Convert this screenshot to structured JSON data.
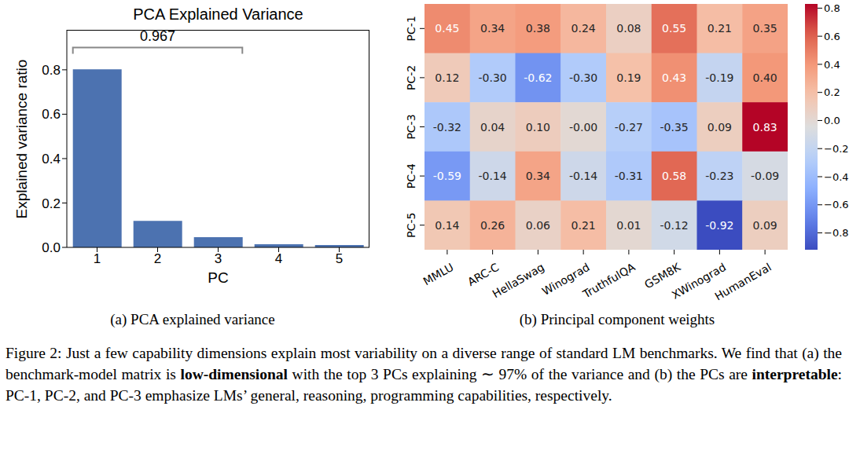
{
  "chart_data": [
    {
      "type": "bar",
      "title": "PCA Explained Variance",
      "caption": "(a) PCA explained variance",
      "x_label": "PC",
      "y_label": "Explained variance ratio",
      "categories": [
        "1",
        "2",
        "3",
        "4",
        "5"
      ],
      "values": [
        0.802,
        0.119,
        0.046,
        0.014,
        0.011
      ],
      "color": "#4c72b0",
      "ylim": [
        0,
        0.98
      ],
      "yticks": [
        {
          "value": 0,
          "label": "0.0"
        },
        0.2,
        0.4,
        0.6,
        0.8
      ],
      "grid": false,
      "annotations": [
        {
          "text": "0.967",
          "x_start": "1",
          "x_end": "3",
          "y": 0.9
        }
      ]
    },
    {
      "type": "heatmap",
      "caption": "(b) Principal component weights",
      "x_categories": [
        "MMLU",
        "ARC-C",
        "HellaSwag",
        "Winograd",
        "TruthfulQA",
        "GSM8K",
        "XWinograd",
        "HumanEval"
      ],
      "y_categories": [
        "PC-1",
        "PC-2",
        "PC-3",
        "PC-4",
        "PC-5"
      ],
      "values": [
        [
          0.45,
          0.34,
          0.38,
          0.24,
          0.08,
          0.55,
          0.21,
          0.35
        ],
        [
          0.12,
          -0.3,
          -0.62,
          -0.3,
          0.19,
          0.43,
          -0.19,
          0.4
        ],
        [
          -0.32,
          0.04,
          0.1,
          0,
          -0.27,
          -0.35,
          0.09,
          0.83
        ],
        [
          -0.59,
          -0.14,
          0.34,
          -0.14,
          -0.31,
          0.58,
          -0.23,
          -0.09
        ],
        [
          0.14,
          0.26,
          0.06,
          0.21,
          0.01,
          -0.12,
          -0.92,
          0.09
        ]
      ],
      "value_labels": [
        [
          "0.45",
          "0.34",
          "0.38",
          "0.24",
          "0.08",
          "0.55",
          "0.21",
          "0.35"
        ],
        [
          "0.12",
          "-0.30",
          "-0.62",
          "-0.30",
          "0.19",
          "0.43",
          "-0.19",
          "0.40"
        ],
        [
          "-0.32",
          "0.04",
          "0.10",
          "-0.00",
          "-0.27",
          "-0.35",
          "0.09",
          "0.83"
        ],
        [
          "-0.59",
          "-0.14",
          "0.34",
          "-0.14",
          "-0.31",
          "0.58",
          "-0.23",
          "-0.09"
        ],
        [
          "0.14",
          "0.26",
          "0.06",
          "0.21",
          "0.01",
          "-0.12",
          "-0.92",
          "0.09"
        ]
      ],
      "data_labels": true,
      "colorbar": {
        "range": [
          -0.92,
          0.83
        ],
        "ticks": [
          {
            "value": 0.8,
            "label": "0.8"
          },
          {
            "value": 0.6,
            "label": "0.6"
          },
          {
            "value": 0.4,
            "label": "0.4"
          },
          {
            "value": 0.2,
            "label": "0.2"
          },
          {
            "value": 0,
            "label": "0.0"
          },
          {
            "value": -0.2,
            "label": "−0.2"
          },
          {
            "value": -0.4,
            "label": "−0.4"
          },
          {
            "value": -0.6,
            "label": "−0.6"
          },
          {
            "value": -0.8,
            "label": "−0.8"
          }
        ]
      }
    }
  ],
  "caption": [
    {
      "text": "Figure 2: Just a few capability dimensions explain most variability on a diverse range of standard LM benchmarks. We find that (a) the benchmark-model matrix is ",
      "bold": false
    },
    {
      "text": "low-dimensional",
      "bold": true
    },
    {
      "text": " with the top 3 PCs explaining ∼ 97% of the variance and (b) the PCs are ",
      "bold": false
    },
    {
      "text": "interpretable",
      "bold": true
    },
    {
      "text": ": PC-1, PC-2, and PC-3 emphasize LMs’ general, reasoning, programming capabilities, respectively.",
      "bold": false
    }
  ]
}
